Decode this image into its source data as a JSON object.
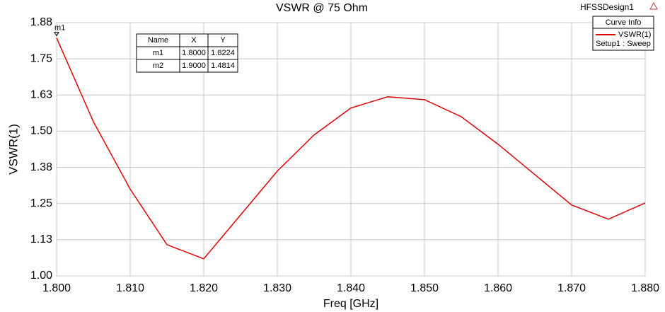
{
  "chart_data": {
    "type": "line",
    "title": "VSWR @ 75 Ohm",
    "design_name": "HFSSDesign1",
    "x_label": "Freq [GHz]",
    "y_label": "VSWR(1)",
    "xlim": [
      1.8,
      1.88
    ],
    "ylim": [
      1.0,
      1.875
    ],
    "xticks": [
      {
        "value": 1.8,
        "label": "1.800"
      },
      {
        "value": 1.81,
        "label": "1.810"
      },
      {
        "value": 1.82,
        "label": "1.820"
      },
      {
        "value": 1.83,
        "label": "1.830"
      },
      {
        "value": 1.84,
        "label": "1.840"
      },
      {
        "value": 1.85,
        "label": "1.850"
      },
      {
        "value": 1.86,
        "label": "1.860"
      },
      {
        "value": 1.87,
        "label": "1.870"
      },
      {
        "value": 1.88,
        "label": "1.880"
      }
    ],
    "yticks": [
      {
        "value": 1.0,
        "label": "1.00"
      },
      {
        "value": 1.125,
        "label": "1.13"
      },
      {
        "value": 1.25,
        "label": "1.25"
      },
      {
        "value": 1.375,
        "label": "1.38"
      },
      {
        "value": 1.5,
        "label": "1.50"
      },
      {
        "value": 1.625,
        "label": "1.63"
      },
      {
        "value": 1.75,
        "label": "1.75"
      },
      {
        "value": 1.875,
        "label": "1.88"
      }
    ],
    "grid": true,
    "x": [
      1.8,
      1.805,
      1.81,
      1.815,
      1.82,
      1.83,
      1.835,
      1.84,
      1.845,
      1.85,
      1.855,
      1.86,
      1.87,
      1.875,
      1.88
    ],
    "series": [
      {
        "name": "VSWR(1)",
        "color": "#e00000",
        "values": [
          1.8224,
          1.533,
          1.3,
          1.108,
          1.059,
          1.362,
          1.487,
          1.58,
          1.619,
          1.609,
          1.55,
          1.455,
          1.245,
          1.196,
          1.252
        ]
      }
    ],
    "legend_title": "Curve Info",
    "legend_subtitle": "Setup1 : Sweep",
    "legend_position": "upper right",
    "marker_table": {
      "columns": [
        "Name",
        "X",
        "Y"
      ],
      "rows": [
        [
          "m1",
          "1.8000",
          "1.8224"
        ],
        [
          "m2",
          "1.9000",
          "1.4814"
        ]
      ]
    }
  }
}
